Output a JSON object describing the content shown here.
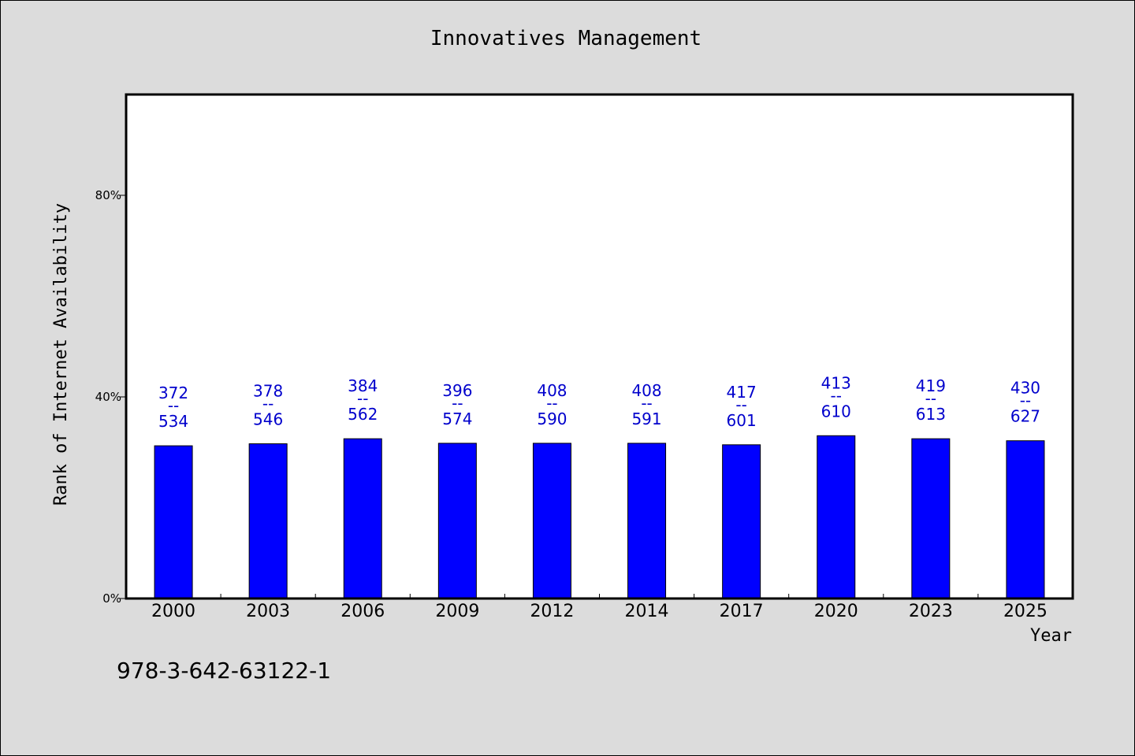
{
  "chart_data": {
    "type": "bar",
    "title": "Innovatives Management",
    "xlabel": "Year",
    "ylabel": "Rank of Internet Availability",
    "ylim": [
      0,
      1
    ],
    "yticks": [
      {
        "value": 0,
        "label": "0%"
      },
      {
        "value": 0.4,
        "label": "40%"
      },
      {
        "value": 0.8,
        "label": "80%"
      }
    ],
    "categories": [
      "2000",
      "2003",
      "2006",
      "2009",
      "2012",
      "2014",
      "2017",
      "2020",
      "2023",
      "2025"
    ],
    "values": [
      0.303,
      0.307,
      0.317,
      0.308,
      0.308,
      0.308,
      0.305,
      0.323,
      0.317,
      0.313
    ],
    "labels": [
      {
        "top": "372",
        "sep": "--",
        "bottom": "534"
      },
      {
        "top": "378",
        "sep": "--",
        "bottom": "546"
      },
      {
        "top": "384",
        "sep": "--",
        "bottom": "562"
      },
      {
        "top": "396",
        "sep": "--",
        "bottom": "574"
      },
      {
        "top": "408",
        "sep": "--",
        "bottom": "590"
      },
      {
        "top": "408",
        "sep": "--",
        "bottom": "591"
      },
      {
        "top": "417",
        "sep": "--",
        "bottom": "601"
      },
      {
        "top": "413",
        "sep": "--",
        "bottom": "610"
      },
      {
        "top": "419",
        "sep": "--",
        "bottom": "613"
      },
      {
        "top": "430",
        "sep": "--",
        "bottom": "627"
      }
    ],
    "bar_color": "#0000ff",
    "label_color": "#0000cc",
    "grid": false,
    "legend": "none"
  },
  "footer": {
    "isbn": "978-3-642-63122-1"
  }
}
